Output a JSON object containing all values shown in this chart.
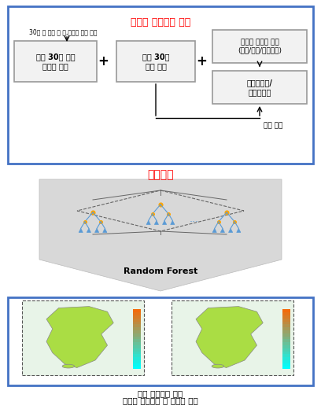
{
  "title_top": "실시간 훈련자료 구축",
  "subtitle_top": "30일 전 자료 중 저,고농도 샘플 누적",
  "box1_text": "최근 30일 이전\n고농도 샘플",
  "box2_text": "최근 30일\n누적 자료",
  "box3_text": "실시간 데이터 수집\n(위성/모델/현장관측)",
  "box4_text": "오버샘플링/\n서브샘플링",
  "label_sample": "샘플 누적",
  "title_ai": "인공지능",
  "label_rf": "Random Forest",
  "bottom_label1": "지상 미세먼지 농도",
  "bottom_label2": "실시간 모니터링 및 초단기 예측",
  "top_box_border": "#4472C4",
  "bottom_box_border": "#4472C4",
  "red_color": "#FF0000",
  "box_fill": "#F2F2F2",
  "box_border": "#999999",
  "arrow_color": "#AAAAAA",
  "bg_color": "#FFFFFF"
}
